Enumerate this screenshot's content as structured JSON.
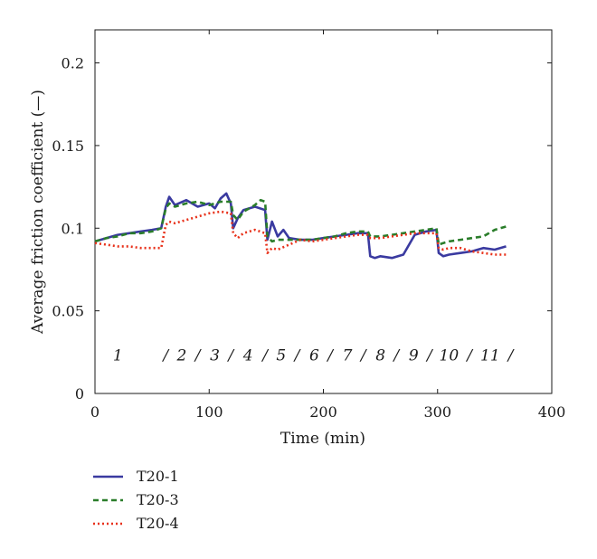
{
  "chart_data": {
    "type": "line",
    "title": "",
    "xlabel": "Time (min)",
    "ylabel": "Average friction coefficient (—)",
    "xlim": [
      0,
      400
    ],
    "ylim": [
      0,
      0.22
    ],
    "xticks": [
      0,
      100,
      200,
      300,
      400
    ],
    "yticks": [
      0,
      0.05,
      0.1,
      0.15,
      0.2
    ],
    "xtick_labels": [
      "0",
      "100",
      "200",
      "300",
      "400"
    ],
    "ytick_labels": [
      "0",
      "0.05",
      "0.1",
      "0.15",
      "0.2"
    ],
    "grid": false,
    "legend_position": "below-left",
    "annotations": [
      {
        "text": "1",
        "x": 20,
        "y": 0.02
      },
      {
        "text": "/",
        "x": 62,
        "y": 0.02
      },
      {
        "text": "2",
        "x": 76,
        "y": 0.02
      },
      {
        "text": "/",
        "x": 90,
        "y": 0.02
      },
      {
        "text": "3",
        "x": 105,
        "y": 0.02
      },
      {
        "text": "/",
        "x": 119,
        "y": 0.02
      },
      {
        "text": "4",
        "x": 134,
        "y": 0.02
      },
      {
        "text": "/",
        "x": 149,
        "y": 0.02
      },
      {
        "text": "5",
        "x": 163,
        "y": 0.02
      },
      {
        "text": "/",
        "x": 177,
        "y": 0.02
      },
      {
        "text": "6",
        "x": 192,
        "y": 0.02
      },
      {
        "text": "/",
        "x": 206,
        "y": 0.02
      },
      {
        "text": "7",
        "x": 221,
        "y": 0.02
      },
      {
        "text": "/",
        "x": 235,
        "y": 0.02
      },
      {
        "text": "8",
        "x": 250,
        "y": 0.02
      },
      {
        "text": "/",
        "x": 264,
        "y": 0.02
      },
      {
        "text": "9",
        "x": 279,
        "y": 0.02
      },
      {
        "text": "/",
        "x": 293,
        "y": 0.02
      },
      {
        "text": "10",
        "x": 310,
        "y": 0.02
      },
      {
        "text": "/",
        "x": 328,
        "y": 0.02
      },
      {
        "text": "11",
        "x": 346,
        "y": 0.02
      },
      {
        "text": "/",
        "x": 364,
        "y": 0.02
      }
    ],
    "series": [
      {
        "name": "T20-1",
        "color": "#3a3aa0",
        "dash": "solid",
        "x": [
          0,
          10,
          20,
          30,
          40,
          50,
          58,
          62,
          65,
          70,
          80,
          90,
          100,
          105,
          110,
          115,
          119,
          121,
          125,
          130,
          140,
          149,
          151,
          155,
          160,
          165,
          170,
          180,
          190,
          200,
          210,
          220,
          230,
          239,
          241,
          245,
          250,
          260,
          270,
          280,
          290,
          299,
          301,
          305,
          310,
          320,
          330,
          340,
          350,
          360
        ],
        "y": [
          0.092,
          0.094,
          0.096,
          0.097,
          0.098,
          0.099,
          0.1,
          0.113,
          0.119,
          0.114,
          0.117,
          0.113,
          0.115,
          0.112,
          0.118,
          0.121,
          0.115,
          0.1,
          0.106,
          0.111,
          0.113,
          0.111,
          0.093,
          0.104,
          0.095,
          0.099,
          0.094,
          0.093,
          0.093,
          0.094,
          0.095,
          0.096,
          0.097,
          0.097,
          0.083,
          0.082,
          0.083,
          0.082,
          0.084,
          0.096,
          0.098,
          0.099,
          0.085,
          0.083,
          0.084,
          0.085,
          0.086,
          0.088,
          0.087,
          0.089
        ]
      },
      {
        "name": "T20-3",
        "color": "#2a7d2a",
        "dash": "6,4",
        "x": [
          0,
          10,
          20,
          30,
          40,
          50,
          58,
          62,
          65,
          70,
          80,
          90,
          100,
          110,
          119,
          121,
          125,
          130,
          140,
          145,
          149,
          151,
          155,
          160,
          170,
          180,
          190,
          200,
          210,
          220,
          230,
          239,
          241,
          250,
          260,
          270,
          280,
          290,
          299,
          301,
          305,
          310,
          320,
          330,
          340,
          350,
          360
        ],
        "y": [
          0.092,
          0.094,
          0.095,
          0.097,
          0.097,
          0.098,
          0.1,
          0.112,
          0.115,
          0.113,
          0.115,
          0.116,
          0.114,
          0.116,
          0.116,
          0.108,
          0.105,
          0.11,
          0.114,
          0.117,
          0.116,
          0.095,
          0.092,
          0.093,
          0.093,
          0.093,
          0.093,
          0.094,
          0.095,
          0.097,
          0.098,
          0.098,
          0.095,
          0.095,
          0.096,
          0.097,
          0.098,
          0.099,
          0.1,
          0.09,
          0.091,
          0.092,
          0.093,
          0.094,
          0.095,
          0.099,
          0.101
        ]
      },
      {
        "name": "T20-4",
        "color": "#e8311a",
        "dash": "2,3",
        "x": [
          0,
          10,
          20,
          30,
          40,
          50,
          58,
          62,
          65,
          70,
          80,
          90,
          100,
          110,
          119,
          121,
          125,
          130,
          140,
          149,
          151,
          155,
          160,
          170,
          180,
          190,
          200,
          210,
          220,
          230,
          239,
          241,
          250,
          260,
          270,
          280,
          290,
          299,
          301,
          305,
          310,
          320,
          330,
          340,
          350,
          360
        ],
        "y": [
          0.091,
          0.09,
          0.089,
          0.089,
          0.088,
          0.088,
          0.088,
          0.102,
          0.104,
          0.103,
          0.105,
          0.107,
          0.109,
          0.11,
          0.109,
          0.097,
          0.094,
          0.097,
          0.099,
          0.097,
          0.085,
          0.088,
          0.087,
          0.09,
          0.093,
          0.092,
          0.093,
          0.094,
          0.095,
          0.096,
          0.096,
          0.094,
          0.094,
          0.095,
          0.096,
          0.097,
          0.097,
          0.097,
          0.088,
          0.087,
          0.088,
          0.088,
          0.086,
          0.085,
          0.084,
          0.084
        ]
      }
    ]
  }
}
